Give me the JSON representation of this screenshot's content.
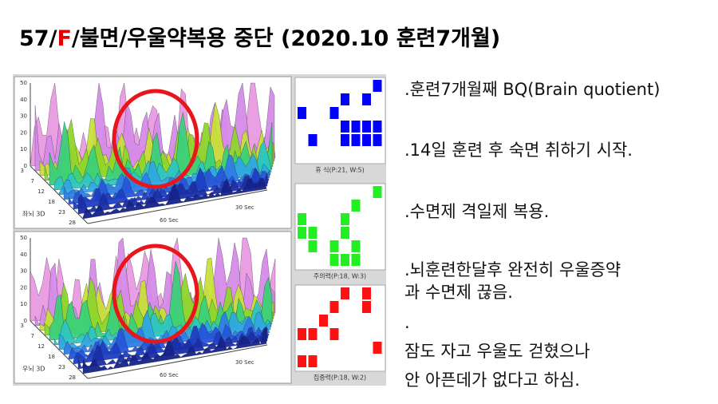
{
  "header": {
    "title_prefix": "57/",
    "title_highlight": "F",
    "title_suffix": "/불면/우울약복용 중단 (2020.10 훈련7개월)"
  },
  "plots": [
    {
      "label": "좌뇌 3D"
    },
    {
      "label": "우뇌 3D"
    }
  ],
  "plot_axes": {
    "z_ticks": [
      50,
      40,
      30,
      20,
      10,
      0
    ],
    "depth_ticks": [
      3,
      7,
      12,
      18,
      23,
      28
    ],
    "time_labels": [
      "60 Sec",
      "30 Sec"
    ]
  },
  "grids": [
    {
      "caption": "휴 식(P:21, W:5)"
    },
    {
      "caption": "주의력(P:18, W:3)"
    },
    {
      "caption": "집중력(P:18, W:2)"
    }
  ],
  "notes": [
    ".훈련7개월째 BQ(Brain quotient)",
    ".14일 훈련 후 숙면 취하기 시작.",
    ".수면제 격일제 복용.",
    ".뇌훈련한달후 완전히 우울증약",
    "과 수면제 끊음.",
    ".",
    "잠도 자고 우울도 걷혔으나",
    "안 아픈데가 없다고 하심."
  ]
}
